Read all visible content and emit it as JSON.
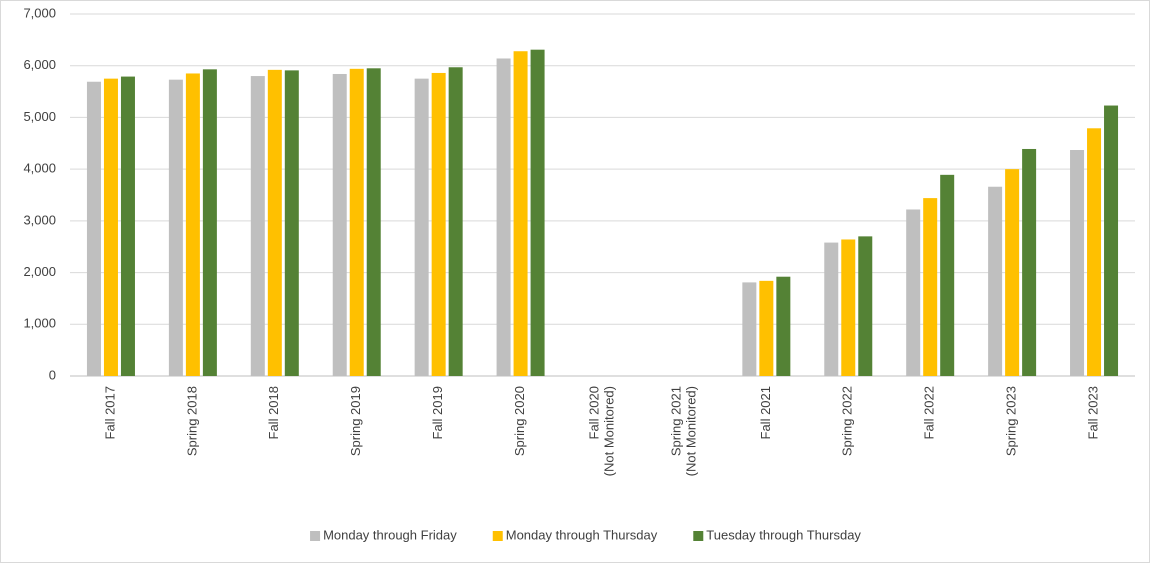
{
  "chart_data": {
    "type": "bar",
    "categories": [
      "Fall 2017",
      "Spring 2018",
      "Fall 2018",
      "Spring 2019",
      "Fall 2019",
      "Spring 2020",
      [
        "Fall 2020",
        "(Not Monitored)"
      ],
      [
        "Spring 2021",
        "(Not Monitored)"
      ],
      "Fall 2021",
      "Spring 2022",
      "Fall 2022",
      "Spring 2023",
      "Fall 2023"
    ],
    "series": [
      {
        "name": "Monday through Friday",
        "color": "#bfbfbf",
        "values": [
          5690,
          5730,
          5800,
          5840,
          5750,
          6140,
          null,
          null,
          1810,
          2580,
          3220,
          3660,
          4370
        ]
      },
      {
        "name": "Monday through Thursday",
        "color": "#ffc000",
        "values": [
          5750,
          5850,
          5920,
          5940,
          5860,
          6280,
          null,
          null,
          1840,
          2640,
          3440,
          4000,
          4790
        ]
      },
      {
        "name": "Tuesday through Thursday",
        "color": "#548235",
        "values": [
          5790,
          5930,
          5910,
          5950,
          5970,
          6310,
          null,
          null,
          1920,
          2700,
          3890,
          4390,
          5230
        ]
      }
    ],
    "ylim": [
      0,
      7000
    ],
    "yticks": [
      0,
      {
        "value": 1000,
        "label": "1,000"
      },
      {
        "value": 2000,
        "label": "2,000"
      },
      {
        "value": 3000,
        "label": "3,000"
      },
      {
        "value": 4000,
        "label": "4,000"
      },
      {
        "value": 5000,
        "label": "5,000"
      },
      {
        "value": 6000,
        "label": "6,000"
      },
      {
        "value": 7000,
        "label": "7,000"
      }
    ],
    "grid": true,
    "legend": "bottom"
  }
}
